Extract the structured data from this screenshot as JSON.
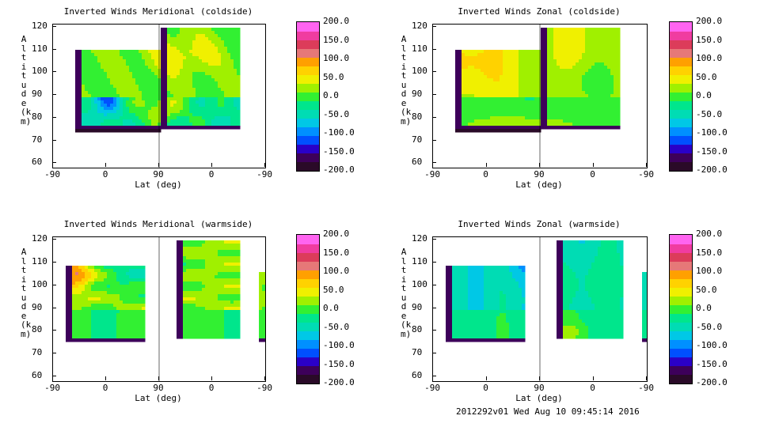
{
  "footer": "2012292v01 Wed Aug 10 09:45:14 2016",
  "colors": {
    "colorbar_bands": [
      "#2a0a28",
      "#3d005a",
      "#2a00c8",
      "#0050ff",
      "#0090ff",
      "#00c8e6",
      "#00dcb4",
      "#00e68c",
      "#32f032",
      "#a0f000",
      "#f0f000",
      "#ffd200",
      "#ffa000",
      "#e67878",
      "#dc3c5a",
      "#f03ca0",
      "#ff64f0"
    ]
  },
  "chart_data": [
    {
      "type": "contour",
      "title": "Inverted Winds Meridional (coldside)",
      "xlabel": "Lat (deg)",
      "ylabel": "Altitude (km)",
      "x_ticks": [
        "-90",
        "0",
        "90",
        "0",
        "-90"
      ],
      "y_ticks": [
        "120",
        "110",
        "100",
        "90",
        "80",
        "70",
        "60"
      ],
      "ylim": [
        58,
        121
      ],
      "colorbar": {
        "ticks": [
          "200.0",
          "150.0",
          "100.0",
          "50.0",
          "0.0",
          "-50.0",
          "-100.0",
          "-150.0",
          "-200.0"
        ],
        "range": [
          -200,
          200
        ]
      }
    },
    {
      "type": "contour",
      "title": "Inverted Winds Zonal (coldside)",
      "xlabel": "Lat (deg)",
      "ylabel": "Altitude (km)",
      "x_ticks": [
        "-90",
        "0",
        "90",
        "0",
        "-90"
      ],
      "y_ticks": [
        "120",
        "110",
        "100",
        "90",
        "80",
        "70",
        "60"
      ],
      "ylim": [
        58,
        121
      ],
      "colorbar": {
        "ticks": [
          "200.0",
          "150.0",
          "100.0",
          "50.0",
          "0.0",
          "-50.0",
          "-100.0",
          "-150.0",
          "-200.0"
        ],
        "range": [
          -200,
          200
        ]
      }
    },
    {
      "type": "contour",
      "title": "Inverted Winds Meridional (warmside)",
      "xlabel": "Lat (deg)",
      "ylabel": "Altitude (km)",
      "x_ticks": [
        "-90",
        "0",
        "90",
        "0",
        "-90"
      ],
      "y_ticks": [
        "120",
        "110",
        "100",
        "90",
        "80",
        "70",
        "60"
      ],
      "ylim": [
        58,
        121
      ],
      "colorbar": {
        "ticks": [
          "200.0",
          "150.0",
          "100.0",
          "50.0",
          "0.0",
          "-50.0",
          "-100.0",
          "-150.0",
          "-200.0"
        ],
        "range": [
          -200,
          200
        ]
      }
    },
    {
      "type": "contour",
      "title": "Inverted Winds Zonal (warmside)",
      "xlabel": "Lat (deg)",
      "ylabel": "Altitude (km)",
      "x_ticks": [
        "-90",
        "0",
        "90",
        "0",
        "-90"
      ],
      "y_ticks": [
        "120",
        "110",
        "100",
        "90",
        "80",
        "70",
        "60"
      ],
      "ylim": [
        58,
        121
      ],
      "colorbar": {
        "ticks": [
          "200.0",
          "150.0",
          "100.0",
          "50.0",
          "0.0",
          "-50.0",
          "-100.0",
          "-150.0",
          "-200.0"
        ],
        "range": [
          -200,
          200
        ]
      }
    }
  ]
}
